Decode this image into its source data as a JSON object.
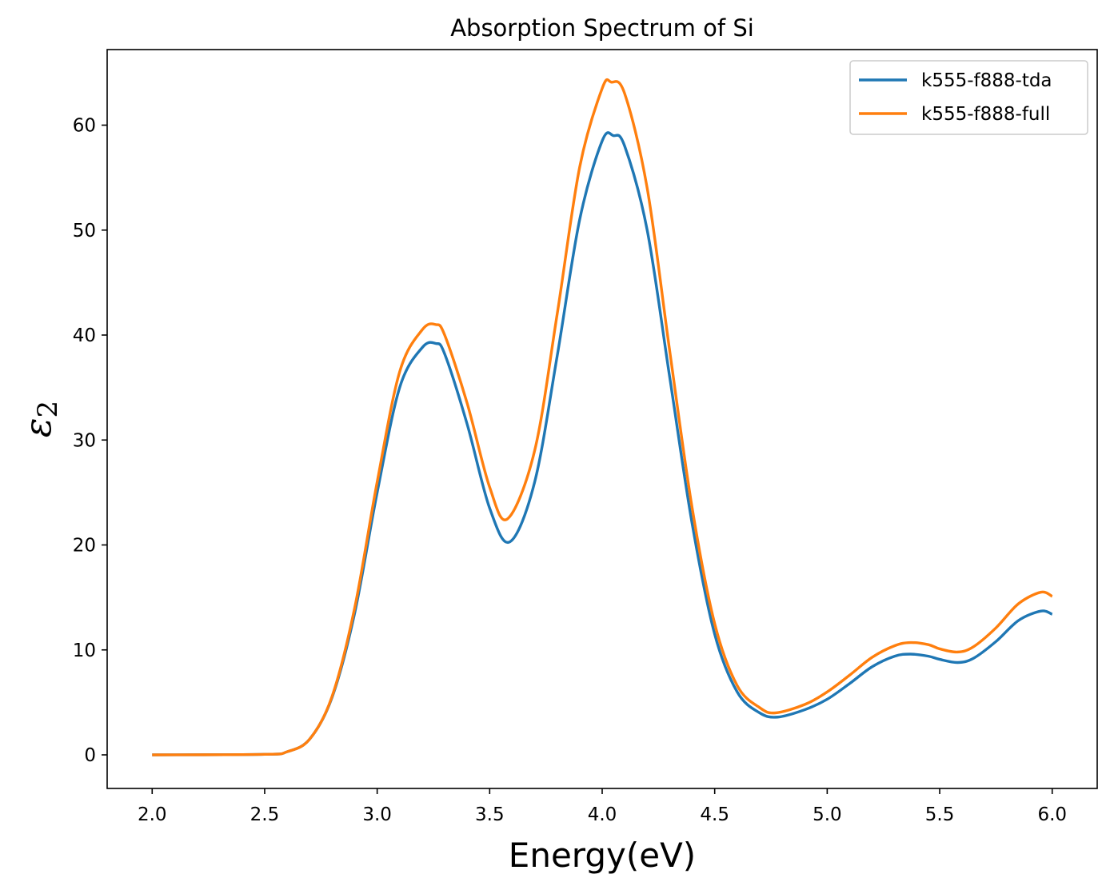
{
  "chart_data": {
    "type": "line",
    "title": "Absorption Spectrum of Si",
    "xlabel": "Energy(eV)",
    "ylabel": "ε",
    "ylabel_subscript": "2",
    "xlim": [
      1.8,
      6.2
    ],
    "ylim": [
      -3.2,
      67.2
    ],
    "xticks": [
      2.0,
      2.5,
      3.0,
      3.5,
      4.0,
      4.5,
      5.0,
      5.5,
      6.0
    ],
    "xtick_labels": [
      "2.0",
      "2.5",
      "3.0",
      "3.5",
      "4.0",
      "4.5",
      "5.0",
      "5.5",
      "6.0"
    ],
    "yticks": [
      0,
      10,
      20,
      30,
      40,
      50,
      60
    ],
    "ytick_labels": [
      "0",
      "10",
      "20",
      "30",
      "40",
      "50",
      "60"
    ],
    "grid": false,
    "legend_position": "top-right",
    "series": [
      {
        "name": "k555-f888-tda",
        "color": "#1f77b4",
        "x": [
          2.0,
          2.5,
          2.6,
          2.7,
          2.8,
          2.9,
          3.0,
          3.1,
          3.2,
          3.26,
          3.3,
          3.4,
          3.5,
          3.59,
          3.7,
          3.8,
          3.9,
          4.0,
          4.05,
          4.1,
          4.2,
          4.3,
          4.4,
          4.5,
          4.6,
          4.7,
          4.78,
          4.9,
          5.0,
          5.1,
          5.2,
          5.3,
          5.37,
          5.45,
          5.5,
          5.58,
          5.65,
          5.75,
          5.85,
          5.95,
          6.0
        ],
        "y": [
          0,
          0.05,
          0.3,
          1.5,
          5.5,
          13.5,
          25,
          35,
          38.8,
          39.2,
          38.2,
          31.5,
          23.5,
          20.3,
          26,
          38,
          51,
          58.5,
          59,
          58,
          50,
          36,
          22,
          11.5,
          6,
          4,
          3.6,
          4.3,
          5.3,
          6.8,
          8.4,
          9.4,
          9.6,
          9.4,
          9.1,
          8.8,
          9.2,
          10.8,
          12.8,
          13.7,
          13.4
        ]
      },
      {
        "name": "k555-f888-full",
        "color": "#ff7f0e",
        "x": [
          2.0,
          2.5,
          2.6,
          2.7,
          2.8,
          2.9,
          3.0,
          3.1,
          3.2,
          3.26,
          3.3,
          3.4,
          3.5,
          3.58,
          3.7,
          3.8,
          3.9,
          4.0,
          4.04,
          4.1,
          4.2,
          4.3,
          4.4,
          4.5,
          4.6,
          4.7,
          4.77,
          4.9,
          5.0,
          5.1,
          5.2,
          5.3,
          5.37,
          5.45,
          5.5,
          5.58,
          5.65,
          5.75,
          5.85,
          5.95,
          6.0
        ],
        "y": [
          0,
          0.05,
          0.3,
          1.5,
          5.6,
          14,
          26,
          36.5,
          40.5,
          41,
          40,
          33.5,
          25.5,
          22.5,
          29,
          42,
          56,
          63.5,
          64.1,
          63,
          54,
          38.5,
          23.5,
          12.5,
          6.6,
          4.5,
          4,
          4.8,
          6,
          7.6,
          9.3,
          10.4,
          10.7,
          10.5,
          10.1,
          9.8,
          10.3,
          12.1,
          14.4,
          15.5,
          15.1
        ]
      }
    ]
  }
}
